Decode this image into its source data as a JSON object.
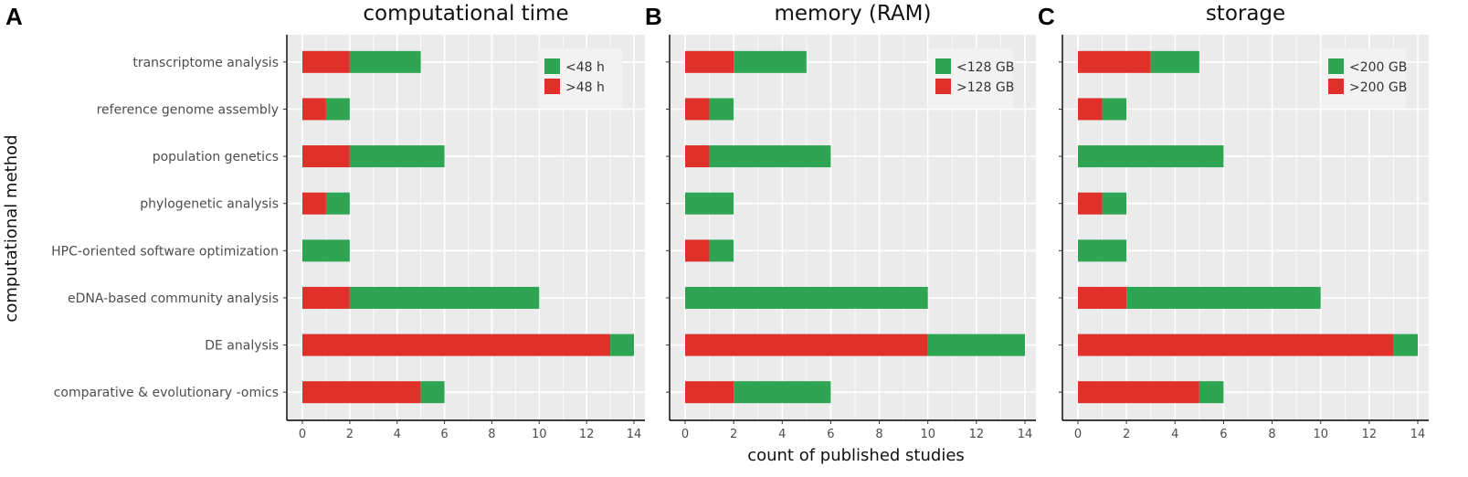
{
  "figure": {
    "ylabel": "computational method",
    "xlabel": "count of published studies"
  },
  "colors": {
    "below": "#2ea552",
    "above": "#e0302a",
    "panel_bg": "#ebebeb",
    "grid": "#ffffff"
  },
  "chart_data": [
    {
      "type": "bar",
      "orientation": "horizontal",
      "stacked": true,
      "panel": "A",
      "title": "computational time",
      "categories": [
        "transcriptome analysis",
        "reference genome assembly",
        "population genetics",
        "phylogenetic analysis",
        "HPC-oriented software optimization",
        "eDNA-based community analysis",
        "DE analysis",
        "comparative & evolutionary -omics"
      ],
      "series": [
        {
          "name": ">48 h",
          "color": "#e0302a",
          "values": [
            2,
            1,
            2,
            1,
            0,
            2,
            13,
            5
          ]
        },
        {
          "name": "<48 h",
          "color": "#2ea552",
          "values": [
            3,
            1,
            4,
            1,
            2,
            8,
            1,
            1
          ]
        }
      ],
      "legend": [
        "<48 h",
        ">48 h"
      ],
      "xlim": [
        0,
        14
      ],
      "xticks": [
        0,
        2,
        4,
        6,
        8,
        10,
        12,
        14
      ],
      "legend_position": "top-right",
      "grid": true
    },
    {
      "type": "bar",
      "orientation": "horizontal",
      "stacked": true,
      "panel": "B",
      "title": "memory (RAM)",
      "categories": [
        "transcriptome analysis",
        "reference genome assembly",
        "population genetics",
        "phylogenetic analysis",
        "HPC-oriented software optimization",
        "eDNA-based community analysis",
        "DE analysis",
        "comparative & evolutionary -omics"
      ],
      "series": [
        {
          "name": ">128 GB",
          "color": "#e0302a",
          "values": [
            2,
            1,
            1,
            0,
            1,
            0,
            10,
            2
          ]
        },
        {
          "name": "<128 GB",
          "color": "#2ea552",
          "values": [
            3,
            1,
            5,
            2,
            1,
            10,
            4,
            4
          ]
        }
      ],
      "legend": [
        "<128 GB",
        ">128 GB"
      ],
      "xlim": [
        0,
        14
      ],
      "xticks": [
        0,
        2,
        4,
        6,
        8,
        10,
        12,
        14
      ],
      "legend_position": "top-right",
      "grid": true
    },
    {
      "type": "bar",
      "orientation": "horizontal",
      "stacked": true,
      "panel": "C",
      "title": "storage",
      "categories": [
        "transcriptome analysis",
        "reference genome assembly",
        "population genetics",
        "phylogenetic analysis",
        "HPC-oriented software optimization",
        "eDNA-based community analysis",
        "DE analysis",
        "comparative & evolutionary -omics"
      ],
      "series": [
        {
          "name": ">200 GB",
          "color": "#e0302a",
          "values": [
            3,
            1,
            0,
            1,
            0,
            2,
            13,
            5
          ]
        },
        {
          "name": "<200 GB",
          "color": "#2ea552",
          "values": [
            2,
            1,
            6,
            1,
            2,
            8,
            1,
            1
          ]
        }
      ],
      "legend": [
        "<200 GB",
        ">200 GB"
      ],
      "xlim": [
        0,
        14
      ],
      "xticks": [
        0,
        2,
        4,
        6,
        8,
        10,
        12,
        14
      ],
      "legend_position": "top-right",
      "grid": true
    }
  ]
}
